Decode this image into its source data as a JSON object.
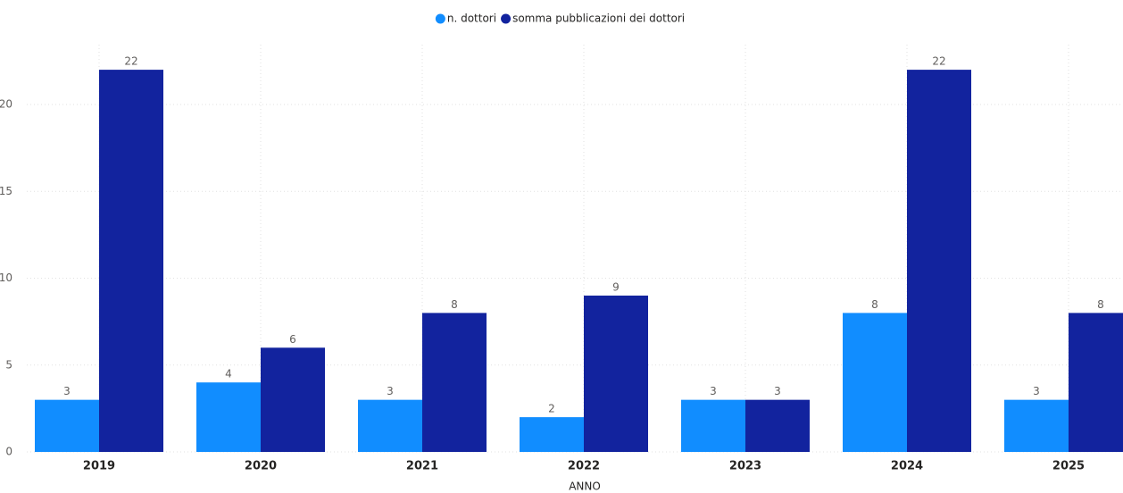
{
  "chart_data": {
    "type": "bar",
    "x_label": "ANNO",
    "categories": [
      "2019",
      "2020",
      "2021",
      "2022",
      "2023",
      "2024",
      "2025"
    ],
    "series": [
      {
        "name": "n. dottori",
        "color": "#118dff",
        "values": [
          3,
          4,
          3,
          2,
          3,
          8,
          3
        ]
      },
      {
        "name": "somma pubblicazioni dei dottori",
        "color": "#12239e",
        "values": [
          22,
          6,
          8,
          9,
          3,
          22,
          8
        ]
      }
    ],
    "ylim": [
      0,
      23
    ],
    "yticks": [
      0,
      5,
      10,
      15,
      20
    ],
    "grid": true,
    "legend": "top"
  }
}
